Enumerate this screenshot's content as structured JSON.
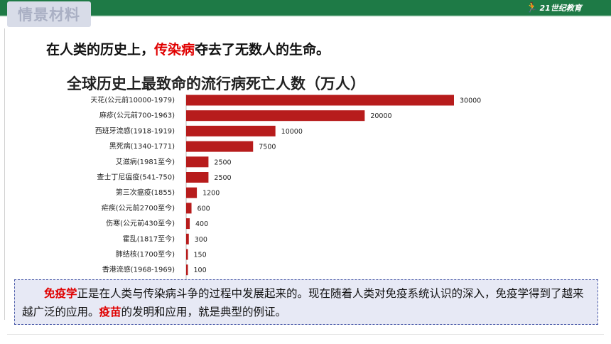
{
  "header": {
    "section_tag": "情景材料",
    "logo_text": "21世纪教育",
    "logo_icon": "runner-icon"
  },
  "headline": {
    "part1": "在人类的历史上，",
    "highlight": "传染病",
    "part2": "夺去了无数人的生命。"
  },
  "chart_data": {
    "type": "bar",
    "orientation": "horizontal",
    "title": "全球历史上最致命的流行病死亡人数（万人）",
    "categories": [
      "天花(公元前10000-1979)",
      "麻疹(公元前700-1963)",
      "西班牙流感(1918-1919)",
      "黑死病(1340-1771)",
      "艾滋病(1981至今)",
      "查士丁尼瘟疫(541-750)",
      "第三次瘟疫(1855)",
      "疟疾(公元前2700至今)",
      "伤寒(公元前430至今)",
      "霍乱(1817至今)",
      "肺结核(1700至今)",
      "香港流感(1968-1969)"
    ],
    "values": [
      30000,
      20000,
      10000,
      7500,
      2500,
      2500,
      1200,
      600,
      400,
      300,
      150,
      100
    ],
    "value_labels": [
      "30000",
      "20000",
      "10000",
      "7500",
      "2500",
      "2500",
      "1200",
      "600",
      "400",
      "300",
      "150",
      "100"
    ],
    "xlim": [
      0,
      30000
    ],
    "bar_color": "#b71c1c",
    "grid": false,
    "legend": "none"
  },
  "callout": {
    "term1": "免疫学",
    "text1": "正是在人类与传染病斗争的过程中发展起来的。现在随着人类对免疫系统认识的深入，免疫学得到了越来越广泛的应用。",
    "term2": "疫苗",
    "text2": "的发明和应用，就是典型的例证。"
  }
}
